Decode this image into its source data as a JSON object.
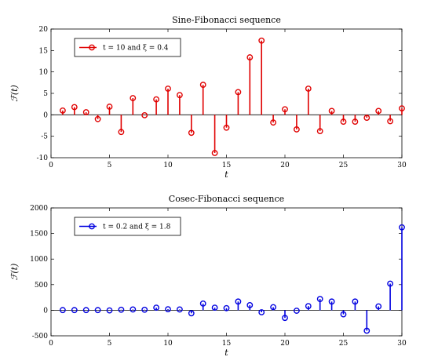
{
  "chart_data": [
    {
      "type": "stem",
      "title": "Sine-Fibonacci sequence",
      "xlabel": "t",
      "ylabel": "ℱ(t)",
      "xlim": [
        0,
        30
      ],
      "ylim": [
        -10,
        20
      ],
      "xticks": [
        0,
        5,
        10,
        15,
        20,
        25,
        30
      ],
      "yticks": [
        -10,
        -5,
        0,
        5,
        10,
        15,
        20
      ],
      "grid": false,
      "legend_position": "top-left",
      "color": "#e00000",
      "series": [
        {
          "name": "t = 10 and ξ = 0.4",
          "x": [
            1,
            2,
            3,
            4,
            5,
            6,
            7,
            8,
            9,
            10,
            11,
            12,
            13,
            14,
            15,
            16,
            17,
            18,
            19,
            20,
            21,
            22,
            23,
            24,
            25,
            26,
            27,
            28,
            29,
            30
          ],
          "y": [
            1.0,
            1.8,
            0.6,
            -1.0,
            1.9,
            -4.0,
            3.9,
            -0.1,
            3.6,
            6.1,
            4.6,
            -4.2,
            7.0,
            -8.9,
            -3.0,
            5.3,
            13.4,
            17.3,
            -1.8,
            1.3,
            -3.4,
            6.1,
            -3.8,
            0.9,
            -1.6,
            -1.6,
            -0.7,
            0.9,
            -1.5,
            1.5
          ]
        }
      ]
    },
    {
      "type": "stem",
      "title": "Cosec-Fibonacci sequence",
      "xlabel": "t",
      "ylabel": "ℱ(t)",
      "xlim": [
        0,
        30
      ],
      "ylim": [
        -500,
        2000
      ],
      "xticks": [
        0,
        5,
        10,
        15,
        20,
        25,
        30
      ],
      "yticks": [
        -500,
        0,
        500,
        1000,
        1500,
        2000
      ],
      "grid": false,
      "legend_position": "top-left",
      "color": "#0000e0",
      "series": [
        {
          "name": "t = 0.2 and ξ = 1.8",
          "x": [
            1,
            2,
            3,
            4,
            5,
            6,
            7,
            8,
            9,
            10,
            11,
            12,
            13,
            14,
            15,
            16,
            17,
            18,
            19,
            20,
            21,
            22,
            23,
            24,
            25,
            26,
            27,
            28,
            29,
            30
          ],
          "y": [
            3,
            3,
            3,
            3,
            -3,
            10,
            15,
            10,
            50,
            20,
            15,
            -60,
            130,
            50,
            40,
            170,
            100,
            -40,
            60,
            -150,
            -10,
            80,
            220,
            170,
            -80,
            170,
            -400,
            75,
            520,
            1620
          ]
        }
      ]
    }
  ]
}
